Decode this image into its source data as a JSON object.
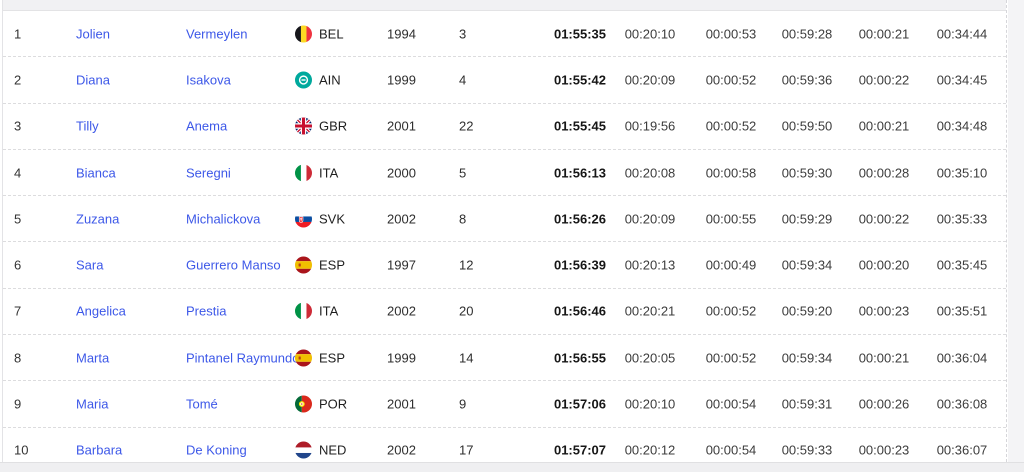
{
  "page": {
    "background_color": "#f4f4f6",
    "link_color": "#3d58e8"
  },
  "table": {
    "rows": [
      {
        "rank": "1",
        "first_name": "Jolien",
        "last_name": "Vermeylen",
        "country_code": "BEL",
        "year_of_birth": "1994",
        "bib": "3",
        "total_time": "01:55:35",
        "swim": "00:20:10",
        "t1": "00:00:53",
        "bike": "00:59:28",
        "t2": "00:00:21",
        "run": "00:34:44"
      },
      {
        "rank": "2",
        "first_name": "Diana",
        "last_name": "Isakova",
        "country_code": "AIN",
        "year_of_birth": "1999",
        "bib": "4",
        "total_time": "01:55:42",
        "swim": "00:20:09",
        "t1": "00:00:52",
        "bike": "00:59:36",
        "t2": "00:00:22",
        "run": "00:34:45"
      },
      {
        "rank": "3",
        "first_name": "Tilly",
        "last_name": "Anema",
        "country_code": "GBR",
        "year_of_birth": "2001",
        "bib": "22",
        "total_time": "01:55:45",
        "swim": "00:19:56",
        "t1": "00:00:52",
        "bike": "00:59:50",
        "t2": "00:00:21",
        "run": "00:34:48"
      },
      {
        "rank": "4",
        "first_name": "Bianca",
        "last_name": "Seregni",
        "country_code": "ITA",
        "year_of_birth": "2000",
        "bib": "5",
        "total_time": "01:56:13",
        "swim": "00:20:08",
        "t1": "00:00:58",
        "bike": "00:59:30",
        "t2": "00:00:28",
        "run": "00:35:10"
      },
      {
        "rank": "5",
        "first_name": "Zuzana",
        "last_name": "Michalickova",
        "country_code": "SVK",
        "year_of_birth": "2002",
        "bib": "8",
        "total_time": "01:56:26",
        "swim": "00:20:09",
        "t1": "00:00:55",
        "bike": "00:59:29",
        "t2": "00:00:22",
        "run": "00:35:33"
      },
      {
        "rank": "6",
        "first_name": "Sara",
        "last_name": "Guerrero Manso",
        "country_code": "ESP",
        "year_of_birth": "1997",
        "bib": "12",
        "total_time": "01:56:39",
        "swim": "00:20:13",
        "t1": "00:00:49",
        "bike": "00:59:34",
        "t2": "00:00:20",
        "run": "00:35:45"
      },
      {
        "rank": "7",
        "first_name": "Angelica",
        "last_name": "Prestia",
        "country_code": "ITA",
        "year_of_birth": "2002",
        "bib": "20",
        "total_time": "01:56:46",
        "swim": "00:20:21",
        "t1": "00:00:52",
        "bike": "00:59:20",
        "t2": "00:00:23",
        "run": "00:35:51"
      },
      {
        "rank": "8",
        "first_name": "Marta",
        "last_name": "Pintanel Raymundo",
        "country_code": "ESP",
        "year_of_birth": "1999",
        "bib": "14",
        "total_time": "01:56:55",
        "swim": "00:20:05",
        "t1": "00:00:52",
        "bike": "00:59:34",
        "t2": "00:00:21",
        "run": "00:36:04"
      },
      {
        "rank": "9",
        "first_name": "Maria",
        "last_name": "Tomé",
        "country_code": "POR",
        "year_of_birth": "2001",
        "bib": "9",
        "total_time": "01:57:06",
        "swim": "00:20:10",
        "t1": "00:00:54",
        "bike": "00:59:31",
        "t2": "00:00:26",
        "run": "00:36:08"
      },
      {
        "rank": "10",
        "first_name": "Barbara",
        "last_name": "De Koning",
        "country_code": "NED",
        "year_of_birth": "2002",
        "bib": "17",
        "total_time": "01:57:07",
        "swim": "00:20:12",
        "t1": "00:00:54",
        "bike": "00:59:33",
        "t2": "00:00:23",
        "run": "00:36:07"
      }
    ]
  }
}
